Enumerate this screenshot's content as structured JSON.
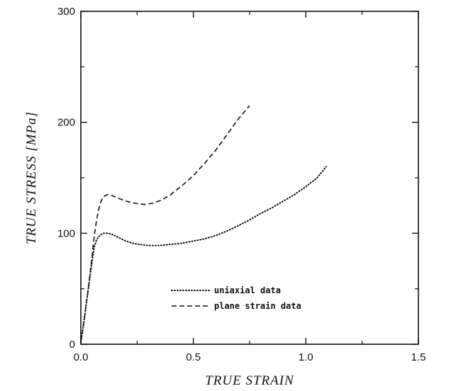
{
  "chart_data": {
    "type": "line",
    "title": "",
    "xlabel": "TRUE STRAIN",
    "ylabel": "TRUE STRESS [MPa]",
    "xlim": [
      0.0,
      1.5
    ],
    "ylim": [
      0,
      300
    ],
    "x_ticks": [
      0.0,
      0.5,
      1.0,
      1.5
    ],
    "x_tick_labels": [
      "0.0",
      "0.5",
      "1.0",
      "1.5"
    ],
    "y_ticks": [
      0,
      100,
      200,
      300
    ],
    "y_tick_labels": [
      "0",
      "100",
      "200",
      "300"
    ],
    "grid": false,
    "legend_position": "lower-center",
    "series": [
      {
        "name": "uniaxial data",
        "style": "dotted",
        "x": [
          0.0,
          0.01,
          0.02,
          0.03,
          0.04,
          0.05,
          0.06,
          0.07,
          0.08,
          0.09,
          0.1,
          0.12,
          0.14,
          0.16,
          0.18,
          0.2,
          0.23,
          0.26,
          0.3,
          0.35,
          0.4,
          0.45,
          0.5,
          0.55,
          0.6,
          0.65,
          0.7,
          0.75,
          0.8,
          0.85,
          0.9,
          0.95,
          1.0,
          1.05,
          1.09
        ],
        "y": [
          2,
          15,
          30,
          45,
          60,
          75,
          88,
          94,
          97,
          99,
          100,
          100,
          99,
          97,
          95,
          93,
          91,
          90,
          89,
          89,
          90,
          91,
          93,
          95,
          98,
          102,
          107,
          112,
          118,
          123,
          129,
          135,
          142,
          150,
          160
        ]
      },
      {
        "name": "plane strain data",
        "style": "dashed",
        "x": [
          0.0,
          0.01,
          0.02,
          0.03,
          0.04,
          0.05,
          0.06,
          0.07,
          0.08,
          0.09,
          0.1,
          0.12,
          0.14,
          0.16,
          0.2,
          0.24,
          0.28,
          0.32,
          0.36,
          0.4,
          0.45,
          0.5,
          0.55,
          0.6,
          0.65,
          0.7,
          0.75
        ],
        "y": [
          2,
          15,
          30,
          45,
          62,
          80,
          98,
          112,
          122,
          129,
          133,
          135,
          134,
          132,
          129,
          127,
          126,
          127,
          130,
          135,
          143,
          152,
          163,
          175,
          189,
          203,
          215
        ]
      }
    ]
  }
}
